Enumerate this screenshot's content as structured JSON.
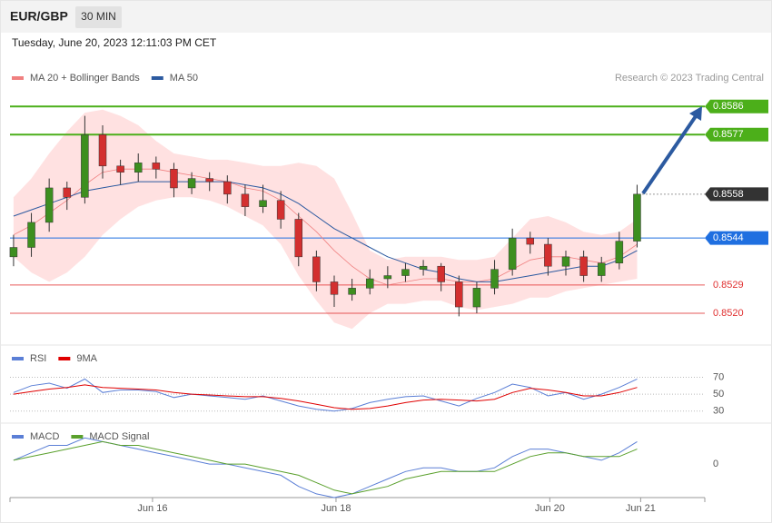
{
  "chart_data": [
    {
      "type": "candlestick",
      "title": "EUR/GBP",
      "timeframe": "30 MIN",
      "subtitle": "Tuesday, June 20, 2023 12:11:03 PM CET",
      "source": "Research © 2023 Trading Central",
      "xlim": [
        -0.2,
        38.8
      ],
      "ylim": [
        0.8511,
        0.8591
      ],
      "up_color": "#3d8f1f",
      "down_color": "#d32f2f",
      "open": [
        0.8538,
        0.8541,
        0.8549,
        0.856,
        0.8557,
        0.8577,
        0.8567,
        0.8565,
        0.8568,
        0.8566,
        0.856,
        0.8563,
        0.8562,
        0.8558,
        0.8554,
        0.8556,
        0.855,
        0.8538,
        0.853,
        0.8526,
        0.8528,
        0.8531,
        0.8532,
        0.8534,
        0.8535,
        0.853,
        0.8522,
        0.8528,
        0.8534,
        0.8544,
        0.8542,
        0.8535,
        0.8538,
        0.8532,
        0.8536,
        0.8543
      ],
      "high": [
        0.8545,
        0.8552,
        0.8563,
        0.8562,
        0.8583,
        0.858,
        0.8569,
        0.8571,
        0.857,
        0.8568,
        0.8565,
        0.8565,
        0.8564,
        0.8561,
        0.8561,
        0.8559,
        0.8552,
        0.854,
        0.8532,
        0.8531,
        0.8534,
        0.8535,
        0.8536,
        0.8537,
        0.8536,
        0.8532,
        0.853,
        0.8537,
        0.8547,
        0.8546,
        0.8544,
        0.854,
        0.854,
        0.8538,
        0.8546,
        0.8561
      ],
      "low": [
        0.8535,
        0.8538,
        0.8546,
        0.8553,
        0.8555,
        0.8563,
        0.8561,
        0.8562,
        0.8563,
        0.8557,
        0.8558,
        0.8559,
        0.8555,
        0.8551,
        0.8552,
        0.8547,
        0.8535,
        0.8527,
        0.8522,
        0.8524,
        0.8526,
        0.8528,
        0.853,
        0.8532,
        0.8527,
        0.8519,
        0.852,
        0.8526,
        0.8532,
        0.8539,
        0.8532,
        0.8532,
        0.853,
        0.853,
        0.8534,
        0.8541
      ],
      "close": [
        0.8541,
        0.8549,
        0.856,
        0.8557,
        0.8577,
        0.8567,
        0.8565,
        0.8568,
        0.8566,
        0.856,
        0.8563,
        0.8562,
        0.8558,
        0.8554,
        0.8556,
        0.855,
        0.8538,
        0.853,
        0.8526,
        0.8528,
        0.8531,
        0.8532,
        0.8534,
        0.8535,
        0.853,
        0.8522,
        0.8528,
        0.8534,
        0.8544,
        0.8542,
        0.8535,
        0.8538,
        0.8532,
        0.8536,
        0.8543,
        0.8558
      ],
      "series": [
        {
          "name": "MA 20 + Bollinger Bands",
          "color": "#f08080",
          "band_color": "#ffdcdc",
          "values": [
            0.8545,
            0.8548,
            0.8552,
            0.8556,
            0.8561,
            0.8565,
            0.8566,
            0.8566,
            0.8566,
            0.8565,
            0.8564,
            0.8563,
            0.8562,
            0.856,
            0.8559,
            0.8556,
            0.8551,
            0.8546,
            0.854,
            0.8535,
            0.8531,
            0.8529,
            0.853,
            0.8531,
            0.8531,
            0.853,
            0.853,
            0.8531,
            0.8534,
            0.8537,
            0.8538,
            0.8538,
            0.8537,
            0.8536,
            0.8538,
            0.8542
          ],
          "upper": [
            0.8557,
            0.8563,
            0.8571,
            0.8578,
            0.8584,
            0.8585,
            0.8583,
            0.858,
            0.8575,
            0.8571,
            0.857,
            0.8569,
            0.8569,
            0.8568,
            0.8567,
            0.8567,
            0.8568,
            0.8567,
            0.8563,
            0.8552,
            0.854,
            0.8537,
            0.8538,
            0.8538,
            0.8538,
            0.8537,
            0.8537,
            0.8538,
            0.8544,
            0.855,
            0.8551,
            0.8549,
            0.8546,
            0.8545,
            0.8546,
            0.855
          ],
          "lower": [
            0.8538,
            0.8533,
            0.853,
            0.8533,
            0.8538,
            0.8545,
            0.855,
            0.8554,
            0.8556,
            0.8557,
            0.8557,
            0.8556,
            0.8554,
            0.8551,
            0.8548,
            0.8542,
            0.8532,
            0.8524,
            0.8517,
            0.8515,
            0.852,
            0.8523,
            0.8523,
            0.8524,
            0.8524,
            0.8522,
            0.8521,
            0.8522,
            0.8523,
            0.8525,
            0.8525,
            0.8527,
            0.8528,
            0.8529,
            0.853,
            0.8531
          ]
        },
        {
          "name": "MA 50",
          "color": "#2c5aa0",
          "values": [
            0.8551,
            0.8553,
            0.8555,
            0.8557,
            0.8559,
            0.856,
            0.8561,
            0.8562,
            0.8562,
            0.8562,
            0.8562,
            0.8562,
            0.8562,
            0.8561,
            0.856,
            0.8558,
            0.8555,
            0.8551,
            0.8547,
            0.8544,
            0.8541,
            0.8538,
            0.8536,
            0.8534,
            0.8533,
            0.8531,
            0.853,
            0.853,
            0.8531,
            0.8532,
            0.8533,
            0.8534,
            0.8535,
            0.8535,
            0.8537,
            0.854
          ]
        }
      ],
      "levels": [
        {
          "price": 0.8586,
          "color": "#4caf1a",
          "style": "box"
        },
        {
          "price": 0.8577,
          "color": "#4caf1a",
          "style": "box"
        },
        {
          "price": 0.8558,
          "color": "#333333",
          "style": "dotted"
        },
        {
          "price": 0.8544,
          "color": "#1f6fe0",
          "style": "box"
        },
        {
          "price": 0.8529,
          "color": "#e03030",
          "style": "text"
        },
        {
          "price": 0.852,
          "price_label": "0.8520",
          "color": "#e03030",
          "style": "text"
        }
      ]
    },
    {
      "type": "line",
      "xlim": [
        -0.2,
        38.8
      ],
      "ylim": [
        20,
        105
      ],
      "yticks": [
        70,
        50,
        30
      ],
      "grid": true,
      "series": [
        {
          "name": "RSI",
          "color": "#5b7fd6",
          "values": [
            52,
            60,
            63,
            57,
            68,
            52,
            55,
            55,
            53,
            46,
            50,
            48,
            46,
            44,
            48,
            42,
            36,
            32,
            30,
            33,
            40,
            44,
            47,
            48,
            42,
            36,
            45,
            52,
            62,
            58,
            48,
            52,
            44,
            50,
            58,
            68
          ]
        },
        {
          "name": "9MA",
          "color": "#e00000",
          "values": [
            50,
            53,
            56,
            58,
            61,
            58,
            57,
            56,
            55,
            52,
            50,
            49,
            48,
            47,
            47,
            45,
            42,
            38,
            34,
            32,
            33,
            36,
            40,
            43,
            44,
            43,
            42,
            44,
            52,
            57,
            55,
            52,
            48,
            48,
            52,
            58
          ]
        }
      ]
    },
    {
      "type": "line",
      "xlim": [
        -0.2,
        38.8
      ],
      "ylim": [
        -0.0009,
        0.001
      ],
      "yticks": [
        0
      ],
      "grid": false,
      "xticks": [
        {
          "value": 7.8,
          "label": "Jun 16"
        },
        {
          "value": 18.1,
          "label": "Jun 18"
        },
        {
          "value": 30.1,
          "label": "Jun 20"
        },
        {
          "value": 35.2,
          "label": "Jun 21"
        }
      ],
      "series": [
        {
          "name": "MACD",
          "color": "#5b7fd6",
          "values": [
            0.0001,
            0.0003,
            0.0005,
            0.0005,
            0.0007,
            0.0006,
            0.0005,
            0.0004,
            0.0003,
            0.0002,
            0.0001,
            0,
            0,
            -0.0001,
            -0.0002,
            -0.0003,
            -0.0006,
            -0.0008,
            -0.0009,
            -0.0008,
            -0.0006,
            -0.0004,
            -0.0002,
            -0.0001,
            -0.0001,
            -0.0002,
            -0.0002,
            -0.0001,
            0.0002,
            0.0004,
            0.0004,
            0.0003,
            0.0002,
            0.0001,
            0.0003,
            0.0006
          ]
        },
        {
          "name": "MACD Signal",
          "color": "#5aa02c",
          "values": [
            0.0001,
            0.0002,
            0.0003,
            0.0004,
            0.0005,
            0.0006,
            0.0005,
            0.0005,
            0.0004,
            0.0003,
            0.0002,
            0.0001,
            0,
            0,
            -0.0001,
            -0.0002,
            -0.0003,
            -0.0005,
            -0.0007,
            -0.0008,
            -0.0007,
            -0.0006,
            -0.0004,
            -0.0003,
            -0.0002,
            -0.0002,
            -0.0002,
            -0.0002,
            0,
            0.0002,
            0.0003,
            0.0003,
            0.0002,
            0.0002,
            0.0002,
            0.0004
          ]
        }
      ]
    }
  ]
}
